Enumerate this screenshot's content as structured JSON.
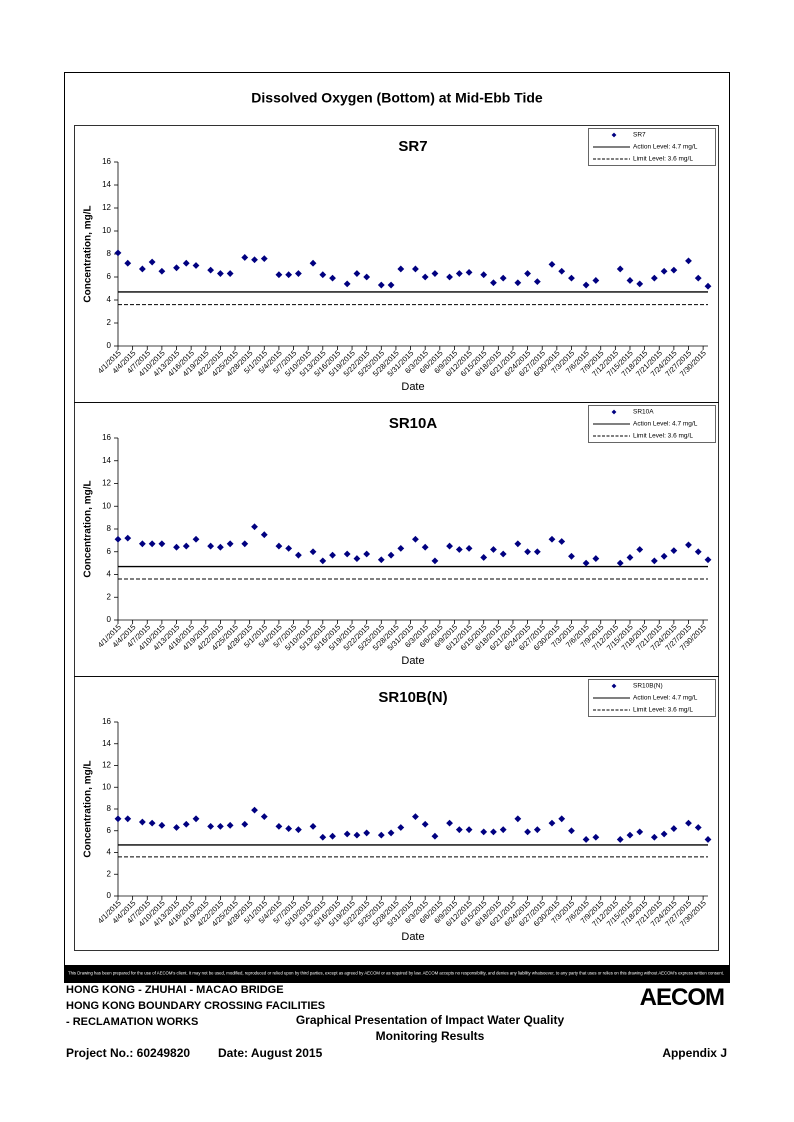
{
  "title": "Dissolved Oxygen (Bottom) at Mid-Ebb Tide",
  "chart_data": [
    {
      "type": "scatter",
      "title": "SR7",
      "x_label": "Date",
      "y_label": "Concentration, mg/L",
      "x": [
        "4/1/2015",
        "4/3/2015",
        "4/6/2015",
        "4/8/2015",
        "4/10/2015",
        "4/13/2015",
        "4/15/2015",
        "4/17/2015",
        "4/20/2015",
        "4/22/2015",
        "4/24/2015",
        "4/27/2015",
        "4/29/2015",
        "5/1/2015",
        "5/4/2015",
        "5/6/2015",
        "5/8/2015",
        "5/11/2015",
        "5/13/2015",
        "5/15/2015",
        "5/18/2015",
        "5/20/2015",
        "5/22/2015",
        "5/25/2015",
        "5/27/2015",
        "5/29/2015",
        "6/1/2015",
        "6/3/2015",
        "6/5/2015",
        "6/8/2015",
        "6/10/2015",
        "6/12/2015",
        "6/15/2015",
        "6/17/2015",
        "6/19/2015",
        "6/22/2015",
        "6/24/2015",
        "6/26/2015",
        "6/29/2015",
        "7/1/2015",
        "7/3/2015",
        "7/6/2015",
        "7/8/2015",
        "7/10/2015",
        "7/13/2015",
        "7/15/2015",
        "7/17/2015",
        "7/20/2015",
        "7/22/2015",
        "7/24/2015",
        "7/27/2015",
        "7/29/2015",
        "7/31/2015"
      ],
      "series": [
        {
          "name": "SR7",
          "color": "#000080",
          "values": [
            8.1,
            7.2,
            6.7,
            7.3,
            6.5,
            6.8,
            7.2,
            7.0,
            6.6,
            6.3,
            6.3,
            7.7,
            7.5,
            7.6,
            6.2,
            6.2,
            6.3,
            7.2,
            6.2,
            5.9,
            5.4,
            6.3,
            6.0,
            5.3,
            5.3,
            6.7,
            6.7,
            6.0,
            6.3,
            6.0,
            6.3,
            6.4,
            6.2,
            5.5,
            5.9,
            5.5,
            6.3,
            5.6,
            7.1,
            6.5,
            5.9,
            5.3,
            5.7,
            null,
            6.7,
            5.7,
            5.4,
            5.9,
            6.5,
            6.6,
            7.4,
            5.9,
            5.2
          ]
        }
      ],
      "reference_lines": [
        {
          "name": "Action Level: 4.7 mg/L",
          "value": 4.7,
          "style": "solid"
        },
        {
          "name": "Limit Level: 3.6 mg/L",
          "value": 3.6,
          "style": "dashed"
        }
      ],
      "xlim": [
        "4/1/2015",
        "7/31/2015"
      ],
      "xticks": [
        "4/1/2015",
        "4/4/2015",
        "4/7/2015",
        "4/10/2015",
        "4/13/2015",
        "4/16/2015",
        "4/19/2015",
        "4/22/2015",
        "4/25/2015",
        "4/28/2015",
        "5/1/2015",
        "5/4/2015",
        "5/7/2015",
        "5/10/2015",
        "5/13/2015",
        "5/16/2015",
        "5/19/2015",
        "5/22/2015",
        "5/25/2015",
        "5/28/2015",
        "5/31/2015",
        "6/3/2015",
        "6/6/2015",
        "6/9/2015",
        "6/12/2015",
        "6/15/2015",
        "6/18/2015",
        "6/21/2015",
        "6/24/2015",
        "6/27/2015",
        "6/30/2015",
        "7/3/2015",
        "7/6/2015",
        "7/9/2015",
        "7/12/2015",
        "7/15/2015",
        "7/18/2015",
        "7/21/2015",
        "7/24/2015",
        "7/27/2015",
        "7/30/2015"
      ],
      "ylim": [
        0,
        16
      ],
      "yticks": [
        0,
        2,
        4,
        6,
        8,
        10,
        12,
        14,
        16
      ],
      "grid": false,
      "legend": "upper right"
    },
    {
      "type": "scatter",
      "title": "SR10A",
      "x_label": "Date",
      "y_label": "Concentration, mg/L",
      "x": [
        "4/1/2015",
        "4/3/2015",
        "4/6/2015",
        "4/8/2015",
        "4/10/2015",
        "4/13/2015",
        "4/15/2015",
        "4/17/2015",
        "4/20/2015",
        "4/22/2015",
        "4/24/2015",
        "4/27/2015",
        "4/29/2015",
        "5/1/2015",
        "5/4/2015",
        "5/6/2015",
        "5/8/2015",
        "5/11/2015",
        "5/13/2015",
        "5/15/2015",
        "5/18/2015",
        "5/20/2015",
        "5/22/2015",
        "5/25/2015",
        "5/27/2015",
        "5/29/2015",
        "6/1/2015",
        "6/3/2015",
        "6/5/2015",
        "6/8/2015",
        "6/10/2015",
        "6/12/2015",
        "6/15/2015",
        "6/17/2015",
        "6/19/2015",
        "6/22/2015",
        "6/24/2015",
        "6/26/2015",
        "6/29/2015",
        "7/1/2015",
        "7/3/2015",
        "7/6/2015",
        "7/8/2015",
        "7/10/2015",
        "7/13/2015",
        "7/15/2015",
        "7/17/2015",
        "7/20/2015",
        "7/22/2015",
        "7/24/2015",
        "7/27/2015",
        "7/29/2015",
        "7/31/2015"
      ],
      "series": [
        {
          "name": "SR10A",
          "color": "#000080",
          "values": [
            7.1,
            7.2,
            6.7,
            6.7,
            6.7,
            6.4,
            6.5,
            7.1,
            6.5,
            6.4,
            6.7,
            6.7,
            8.2,
            7.5,
            6.5,
            6.3,
            5.7,
            6.0,
            5.2,
            5.7,
            5.8,
            5.4,
            5.8,
            5.3,
            5.7,
            6.3,
            7.1,
            6.4,
            5.2,
            6.5,
            6.2,
            6.3,
            5.5,
            6.2,
            5.8,
            6.7,
            6.0,
            6.0,
            7.1,
            6.9,
            5.6,
            5.0,
            5.4,
            null,
            5.0,
            5.5,
            6.2,
            5.2,
            5.6,
            6.1,
            6.6,
            6.0,
            5.3
          ]
        }
      ],
      "reference_lines": [
        {
          "name": "Action Level: 4.7 mg/L",
          "value": 4.7,
          "style": "solid"
        },
        {
          "name": "Limit Level: 3.6 mg/L",
          "value": 3.6,
          "style": "dashed"
        }
      ],
      "xlim": [
        "4/1/2015",
        "7/31/2015"
      ],
      "xticks": [
        "4/1/2015",
        "4/4/2015",
        "4/7/2015",
        "4/10/2015",
        "4/13/2015",
        "4/16/2015",
        "4/19/2015",
        "4/22/2015",
        "4/25/2015",
        "4/28/2015",
        "5/1/2015",
        "5/4/2015",
        "5/7/2015",
        "5/10/2015",
        "5/13/2015",
        "5/16/2015",
        "5/19/2015",
        "5/22/2015",
        "5/25/2015",
        "5/28/2015",
        "5/31/2015",
        "6/3/2015",
        "6/6/2015",
        "6/9/2015",
        "6/12/2015",
        "6/15/2015",
        "6/18/2015",
        "6/21/2015",
        "6/24/2015",
        "6/27/2015",
        "6/30/2015",
        "7/3/2015",
        "7/6/2015",
        "7/9/2015",
        "7/12/2015",
        "7/15/2015",
        "7/18/2015",
        "7/21/2015",
        "7/24/2015",
        "7/27/2015",
        "7/30/2015"
      ],
      "ylim": [
        0,
        16
      ],
      "yticks": [
        0,
        2,
        4,
        6,
        8,
        10,
        12,
        14,
        16
      ],
      "grid": false,
      "legend": "upper right"
    },
    {
      "type": "scatter",
      "title": "SR10B(N)",
      "x_label": "Date",
      "y_label": "Concentration, mg/L",
      "x": [
        "4/1/2015",
        "4/3/2015",
        "4/6/2015",
        "4/8/2015",
        "4/10/2015",
        "4/13/2015",
        "4/15/2015",
        "4/17/2015",
        "4/20/2015",
        "4/22/2015",
        "4/24/2015",
        "4/27/2015",
        "4/29/2015",
        "5/1/2015",
        "5/4/2015",
        "5/6/2015",
        "5/8/2015",
        "5/11/2015",
        "5/13/2015",
        "5/15/2015",
        "5/18/2015",
        "5/20/2015",
        "5/22/2015",
        "5/25/2015",
        "5/27/2015",
        "5/29/2015",
        "6/1/2015",
        "6/3/2015",
        "6/5/2015",
        "6/8/2015",
        "6/10/2015",
        "6/12/2015",
        "6/15/2015",
        "6/17/2015",
        "6/19/2015",
        "6/22/2015",
        "6/24/2015",
        "6/26/2015",
        "6/29/2015",
        "7/1/2015",
        "7/3/2015",
        "7/6/2015",
        "7/8/2015",
        "7/10/2015",
        "7/13/2015",
        "7/15/2015",
        "7/17/2015",
        "7/20/2015",
        "7/22/2015",
        "7/24/2015",
        "7/27/2015",
        "7/29/2015",
        "7/31/2015"
      ],
      "series": [
        {
          "name": "SR10B(N)",
          "color": "#000080",
          "values": [
            7.1,
            7.1,
            6.8,
            6.7,
            6.5,
            6.3,
            6.6,
            7.1,
            6.4,
            6.4,
            6.5,
            6.6,
            7.9,
            7.3,
            6.4,
            6.2,
            6.1,
            6.4,
            5.4,
            5.5,
            5.7,
            5.6,
            5.8,
            5.6,
            5.8,
            6.3,
            7.3,
            6.6,
            5.5,
            6.7,
            6.1,
            6.1,
            5.9,
            5.9,
            6.1,
            7.1,
            5.9,
            6.1,
            6.7,
            7.1,
            6.0,
            5.2,
            5.4,
            null,
            5.2,
            5.6,
            5.9,
            5.4,
            5.7,
            6.2,
            6.7,
            6.3,
            5.2
          ]
        }
      ],
      "reference_lines": [
        {
          "name": "Action Level: 4.7 mg/L",
          "value": 4.7,
          "style": "solid"
        },
        {
          "name": "Limit Level: 3.6 mg/L",
          "value": 3.6,
          "style": "dashed"
        }
      ],
      "xlim": [
        "4/1/2015",
        "7/31/2015"
      ],
      "xticks": [
        "4/1/2015",
        "4/4/2015",
        "4/7/2015",
        "4/10/2015",
        "4/13/2015",
        "4/16/2015",
        "4/19/2015",
        "4/22/2015",
        "4/25/2015",
        "4/28/2015",
        "5/1/2015",
        "5/4/2015",
        "5/7/2015",
        "5/10/2015",
        "5/13/2015",
        "5/16/2015",
        "5/19/2015",
        "5/22/2015",
        "5/25/2015",
        "5/28/2015",
        "5/31/2015",
        "6/3/2015",
        "6/6/2015",
        "6/9/2015",
        "6/12/2015",
        "6/15/2015",
        "6/18/2015",
        "6/21/2015",
        "6/24/2015",
        "6/27/2015",
        "6/30/2015",
        "7/3/2015",
        "7/6/2015",
        "7/9/2015",
        "7/12/2015",
        "7/15/2015",
        "7/18/2015",
        "7/21/2015",
        "7/24/2015",
        "7/27/2015",
        "7/30/2015"
      ],
      "ylim": [
        0,
        16
      ],
      "yticks": [
        0,
        2,
        4,
        6,
        8,
        10,
        12,
        14,
        16
      ],
      "grid": false,
      "legend": "upper right"
    }
  ],
  "disclaimer": "This Drawing has been prepared for the use of AECOM's client. It may not be used, modified, reproduced or relied upon by third parties, except as agreed by AECOM or as required by law. AECOM accepts no responsibility, and denies any liability whatsoever, to any party that uses or relies on this drawing without AECOM's express written consent.",
  "footer": {
    "project_lines": [
      "HONG KONG - ZHUHAI - MACAO BRIDGE",
      "HONG KONG BOUNDARY CROSSING FACILITIES",
      "- RECLAMATION WORKS"
    ],
    "drawing_title": [
      "Graphical Presentation of Impact Water Quality",
      "Monitoring Results"
    ],
    "project_no": "Project No.: 60249820",
    "date": "Date: August 2015",
    "appendix": "Appendix J",
    "logo": "AECOM"
  }
}
